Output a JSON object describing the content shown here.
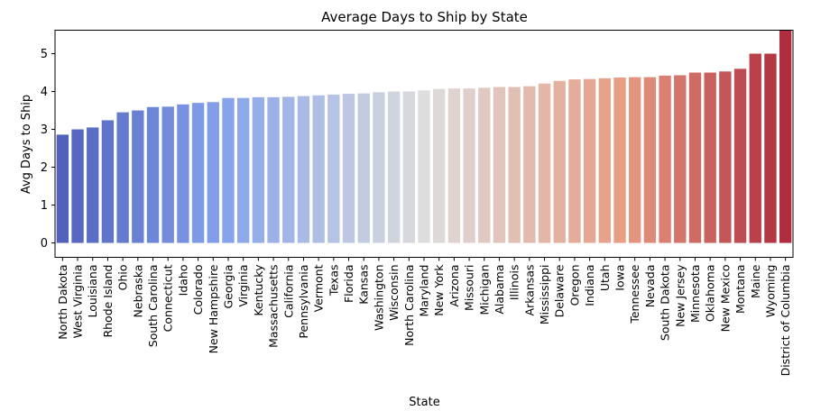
{
  "chart_data": {
    "type": "bar",
    "title": "Average Days to Ship by State",
    "xlabel": "State",
    "ylabel": "Avg Days to Ship",
    "ylim": [
      -0.38,
      5.62
    ],
    "yticks": [
      "0",
      "1",
      "2",
      "3",
      "4",
      "5"
    ],
    "palette": "coolwarm",
    "grid": false,
    "legend": "none",
    "categories": [
      "North Dakota",
      "West Virginia",
      "Louisiana",
      "Rhode Island",
      "Ohio",
      "Nebraska",
      "South Carolina",
      "Connecticut",
      "Idaho",
      "Colorado",
      "New Hampshire",
      "Georgia",
      "Virginia",
      "Kentucky",
      "Massachusetts",
      "California",
      "Pennsylvania",
      "Vermont",
      "Texas",
      "Florida",
      "Kansas",
      "Washington",
      "Wisconsin",
      "North Carolina",
      "Maryland",
      "New York",
      "Arizona",
      "Missouri",
      "Michigan",
      "Alabama",
      "Illinois",
      "Arkansas",
      "Mississippi",
      "Delaware",
      "Oregon",
      "Indiana",
      "Utah",
      "Iowa",
      "Tennessee",
      "Nevada",
      "South Dakota",
      "New Jersey",
      "Minnesota",
      "Oklahoma",
      "New Mexico",
      "Montana",
      "Maine",
      "Wyoming",
      "District of Columbia"
    ],
    "values": [
      2.86,
      3.0,
      3.05,
      3.24,
      3.45,
      3.5,
      3.59,
      3.6,
      3.66,
      3.7,
      3.72,
      3.83,
      3.83,
      3.85,
      3.85,
      3.86,
      3.88,
      3.9,
      3.92,
      3.94,
      3.95,
      3.98,
      4.0,
      4.0,
      4.03,
      4.07,
      4.08,
      4.08,
      4.1,
      4.12,
      4.12,
      4.14,
      4.21,
      4.28,
      4.32,
      4.33,
      4.35,
      4.37,
      4.38,
      4.38,
      4.42,
      4.43,
      4.5,
      4.5,
      4.53,
      4.6,
      5.0,
      5.0,
      6.0
    ]
  }
}
